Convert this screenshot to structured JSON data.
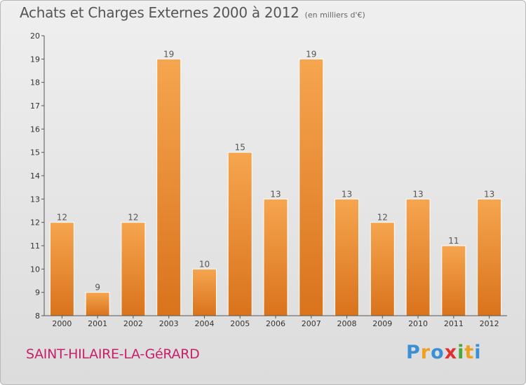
{
  "header": {
    "title": "Achats et Charges Externes 2000 à 2012",
    "subtitle": "(en milliers d'€)"
  },
  "footer": {
    "commune": "SAINT-HILAIRE-LA-GéRARD",
    "brand": [
      "P",
      "r",
      "o",
      "x",
      "i",
      "t",
      "i"
    ],
    "brand_colors": [
      "#3a8fd6",
      "#f0a020",
      "#3a8fd6",
      "#e03030",
      "#49a83a",
      "#f0a020",
      "#3a8fd6"
    ]
  },
  "colors": {
    "bar_light": "#f6a54f",
    "bar_dark": "#d9731c",
    "bar_stroke": "#ffffff",
    "axis": "#555555"
  },
  "chart_data": {
    "type": "bar",
    "categories": [
      "2000",
      "2001",
      "2002",
      "2003",
      "2004",
      "2005",
      "2006",
      "2007",
      "2008",
      "2009",
      "2010",
      "2011",
      "2012"
    ],
    "values": [
      12,
      9,
      12,
      19,
      10,
      15,
      13,
      19,
      13,
      12,
      13,
      11,
      13
    ],
    "ylim": [
      8,
      20
    ],
    "yticks": [
      8,
      9,
      10,
      11,
      12,
      13,
      14,
      15,
      16,
      17,
      18,
      19,
      20
    ],
    "grid": false,
    "legend": "none"
  }
}
